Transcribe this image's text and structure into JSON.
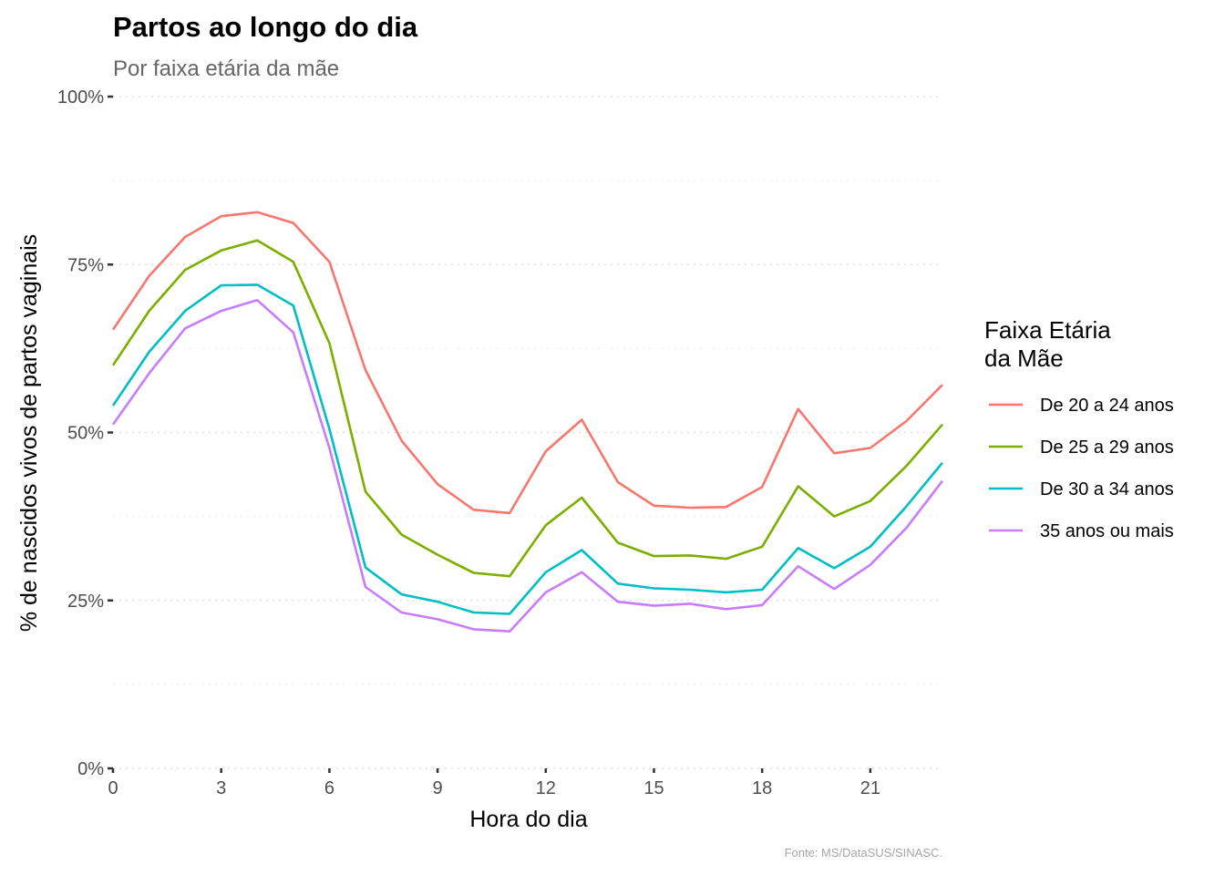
{
  "chart_data": {
    "type": "line",
    "title": "Partos ao longo do dia",
    "subtitle": "Por faixa etária da mãe",
    "xlabel": "Hora do dia",
    "ylabel": "% de nascidos vivos de partos vaginais",
    "caption": "Fonte: MS/DataSUS/SINASC.",
    "legend_title": [
      "Faixa Etária",
      "da Mãe"
    ],
    "legend_position": "right",
    "grid": "horizontal dotted",
    "xlim": [
      0,
      23
    ],
    "ylim": [
      0,
      1
    ],
    "x_ticks": [
      0,
      3,
      6,
      9,
      12,
      15,
      18,
      21
    ],
    "y_ticks": [
      0,
      0.25,
      0.5,
      0.75,
      1.0
    ],
    "y_tick_labels": [
      "0%",
      "25%",
      "50%",
      "75%",
      "100%"
    ],
    "x": [
      0,
      1,
      2,
      3,
      4,
      5,
      6,
      7,
      8,
      9,
      10,
      11,
      12,
      13,
      14,
      15,
      16,
      17,
      18,
      19,
      20,
      21,
      22,
      23
    ],
    "series": [
      {
        "name": "De 20 a 24 anos",
        "color": "#F8766D",
        "values": [
          0.653,
          0.733,
          0.791,
          0.822,
          0.828,
          0.812,
          0.754,
          0.593,
          0.488,
          0.423,
          0.385,
          0.38,
          0.472,
          0.519,
          0.426,
          0.391,
          0.388,
          0.389,
          0.419,
          0.535,
          0.469,
          0.477,
          0.517,
          0.571
        ]
      },
      {
        "name": "De 25 a 29 anos",
        "color": "#7CAE00",
        "values": [
          0.6,
          0.681,
          0.742,
          0.771,
          0.786,
          0.754,
          0.633,
          0.412,
          0.348,
          0.318,
          0.291,
          0.286,
          0.362,
          0.403,
          0.336,
          0.316,
          0.317,
          0.312,
          0.33,
          0.42,
          0.375,
          0.398,
          0.45,
          0.512
        ]
      },
      {
        "name": "De 30 a 34 anos",
        "color": "#00BFC4",
        "values": [
          0.54,
          0.62,
          0.681,
          0.719,
          0.72,
          0.689,
          0.505,
          0.299,
          0.259,
          0.248,
          0.232,
          0.23,
          0.292,
          0.325,
          0.275,
          0.268,
          0.266,
          0.262,
          0.266,
          0.328,
          0.298,
          0.33,
          0.39,
          0.455
        ]
      },
      {
        "name": "35 anos ou mais",
        "color": "#C77CFF",
        "values": [
          0.512,
          0.588,
          0.655,
          0.681,
          0.697,
          0.649,
          0.477,
          0.27,
          0.232,
          0.222,
          0.207,
          0.204,
          0.262,
          0.292,
          0.248,
          0.242,
          0.245,
          0.237,
          0.243,
          0.301,
          0.267,
          0.303,
          0.358,
          0.428
        ]
      }
    ]
  }
}
